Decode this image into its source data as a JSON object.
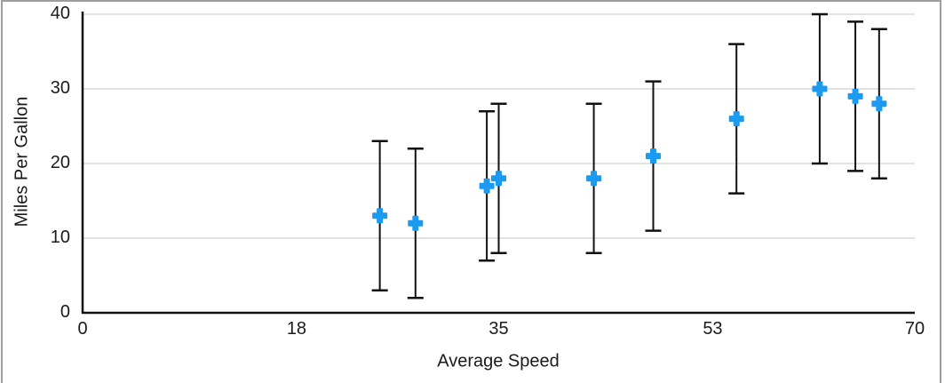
{
  "chart_data": {
    "type": "scatter",
    "title": "",
    "xlabel": "Average Speed",
    "ylabel": "Miles Per Gallon",
    "xlim": [
      0,
      70
    ],
    "ylim": [
      0,
      40
    ],
    "x_ticks": [
      0,
      18,
      35,
      53,
      70
    ],
    "y_ticks": [
      0,
      10,
      20,
      30,
      40
    ],
    "grid": "horizontal",
    "legend": "none",
    "marker": {
      "shape": "plus",
      "size": 15,
      "arm_thickness": 5
    },
    "error_bars": {
      "direction": "vertical",
      "type": "fixed",
      "plus": 10,
      "minus": 10,
      "cap_width": 18
    },
    "series": [
      {
        "name": "Miles Per Gallon",
        "x": [
          25,
          28,
          34,
          35,
          43,
          48,
          55,
          62,
          65,
          67
        ],
        "y": [
          13,
          12,
          17,
          18,
          18,
          21,
          26,
          30,
          29,
          28
        ],
        "y_error_plus": [
          10,
          10,
          10,
          10,
          10,
          10,
          10,
          10,
          10,
          10
        ],
        "y_error_minus": [
          10,
          10,
          10,
          10,
          10,
          10,
          10,
          10,
          10,
          10
        ]
      }
    ],
    "colors": {
      "marker": "#1b9af0",
      "error_bar": "#111111",
      "axis": "#111111",
      "gridline": "#d9d9d9",
      "text": "#1a1a1a",
      "frame_border": "#9e9e9e",
      "background": "#ffffff"
    }
  }
}
